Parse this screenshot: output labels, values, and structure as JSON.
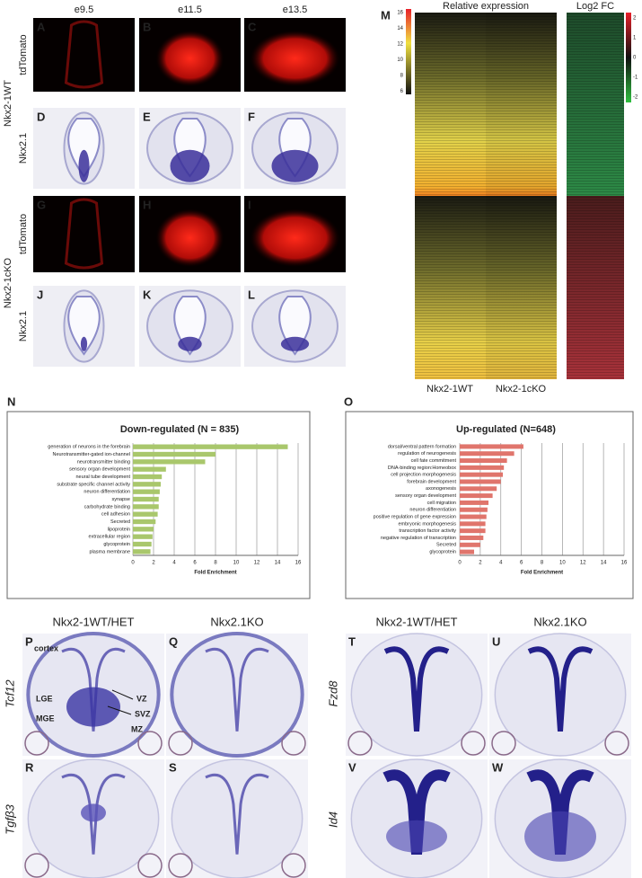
{
  "figure": {
    "top_columns": [
      "e9.5",
      "e11.5",
      "e13.5"
    ],
    "top_panels": [
      "A",
      "B",
      "C",
      "D",
      "E",
      "F",
      "G",
      "H",
      "I",
      "J",
      "K",
      "L"
    ],
    "stain_labels": [
      "tdTomato",
      "Nkx2.1",
      "tdTomato",
      "Nkx2.1"
    ],
    "genotype_labels": [
      "Nkx2-1WT",
      "Nkx2-1cKO"
    ],
    "heatmap": {
      "panel": "M",
      "title": "Relative expression",
      "fc_title": "Log2 FC",
      "columns": [
        "Nkx2-1WT",
        "Nkx2-1cKO"
      ],
      "expr_ticks": [
        16,
        14,
        12,
        10,
        8,
        6
      ],
      "fc_ticks": [
        2,
        1,
        0,
        -1,
        -2
      ]
    },
    "chart_panels": [
      "N",
      "O"
    ],
    "bottom_columns": [
      "Nkx2-1WT/HET",
      "Nkx2.1KO",
      "Nkx2-1WT/HET",
      "Nkx2.1KO"
    ],
    "bottom_panels": [
      "P",
      "Q",
      "R",
      "S",
      "T",
      "U",
      "V",
      "W"
    ],
    "genes": [
      "Tcf12",
      "Tgfβ3",
      "Fzd8",
      "Id4"
    ],
    "annotations": [
      "cortex",
      "LGE",
      "MGE",
      "VZ",
      "SVZ",
      "MZ"
    ]
  },
  "chart_data": [
    {
      "type": "bar",
      "horizontal": true,
      "title": "Down-regulated (N = 835)",
      "categories": [
        "generation of neurons in the forebrain",
        "Neurotransmitter-gated ion-channel",
        "neurotransmitter binding",
        "sensory organ development",
        "neural tube development",
        "substrate specific channel activity",
        "neuron differentiation",
        "synapse",
        "carbohydrate binding",
        "cell adhesion",
        "Secreted",
        "lipoprotein",
        "extracellular region",
        "glycoprotein",
        "plasma membrane"
      ],
      "values": [
        15.0,
        8.0,
        7.0,
        3.2,
        2.8,
        2.7,
        2.6,
        2.5,
        2.5,
        2.4,
        2.2,
        2.0,
        1.9,
        1.8,
        1.7
      ],
      "color": "#a9c76c",
      "xlim": [
        0,
        16
      ],
      "xticks": [
        0,
        2,
        4,
        6,
        8,
        10,
        12,
        14,
        16
      ],
      "xlabel": "Fold Enrichment",
      "grid": true
    },
    {
      "type": "bar",
      "horizontal": true,
      "title": "Up-regulated (N=648)",
      "categories": [
        "dorsal/ventral pattern formation",
        "regulation of neurogenesis",
        "cell fate commitment",
        "DNA-binding region:Homeobox",
        "cell projection morphogenesis",
        "forebrain development",
        "axonogenesis",
        "sensory organ development",
        "cell migration",
        "neuron differentiation",
        "positive regulation of gene expression",
        "embryonic morphogenesis",
        "transcription factor activity",
        "negative regulation of transcription",
        "Secreted",
        "glycoprotein"
      ],
      "values": [
        6.2,
        5.3,
        4.6,
        4.3,
        4.2,
        4.0,
        3.6,
        3.2,
        2.8,
        2.7,
        2.6,
        2.5,
        2.5,
        2.3,
        2.0,
        1.4
      ],
      "color": "#e0756c",
      "xlim": [
        0,
        16
      ],
      "xticks": [
        0,
        2,
        4,
        6,
        8,
        10,
        12,
        14,
        16
      ],
      "xlabel": "Fold Enrichment",
      "grid": true
    }
  ]
}
